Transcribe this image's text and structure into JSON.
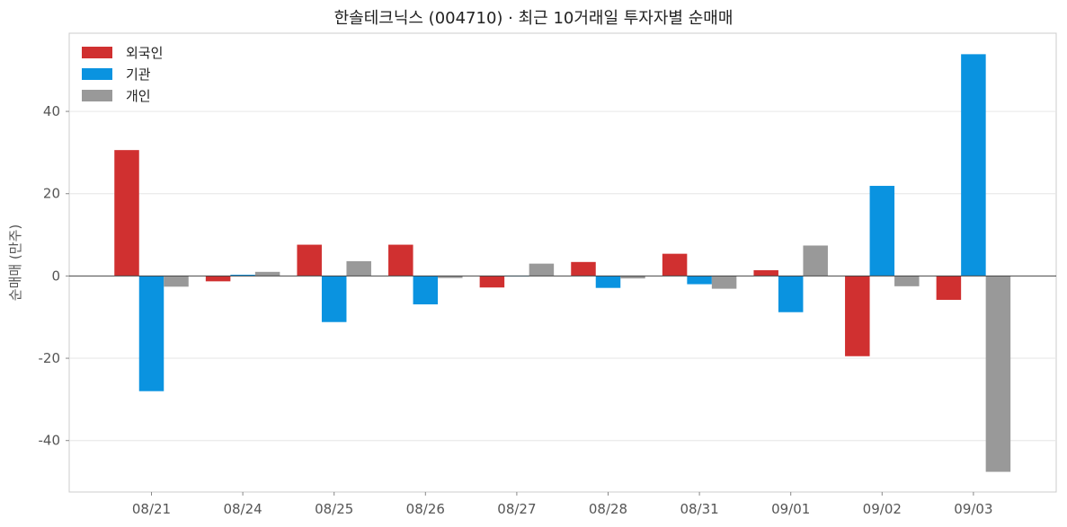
{
  "chart_data": {
    "type": "bar",
    "title": "한솔테크닉스 (004710) · 최근 10거래일 투자자별 순매매",
    "xlabel": "",
    "ylabel": "순매매 (만주)",
    "categories": [
      "08/21",
      "08/24",
      "08/25",
      "08/26",
      "08/27",
      "08/28",
      "08/31",
      "09/01",
      "09/02",
      "09/03"
    ],
    "series": [
      {
        "name": "외국인",
        "color": "#d03030",
        "values": [
          30.6,
          -1.3,
          7.6,
          7.6,
          -2.8,
          3.4,
          5.4,
          1.4,
          -19.5,
          -5.8
        ]
      },
      {
        "name": "기관",
        "color": "#0a93e0",
        "values": [
          -28.0,
          0.3,
          -11.2,
          -6.9,
          0.0,
          -2.9,
          -2.0,
          -8.8,
          21.9,
          53.9
        ]
      },
      {
        "name": "개인",
        "color": "#999999",
        "values": [
          -2.6,
          1.0,
          3.6,
          -0.5,
          3.0,
          -0.6,
          -3.1,
          7.4,
          -2.5,
          -47.6
        ]
      }
    ],
    "yticks": [
      -40,
      -20,
      0,
      20,
      40
    ],
    "ytick_labels": [
      "-40",
      "-20",
      "0",
      "20",
      "40"
    ],
    "ylim": [
      -52.5,
      59.0
    ],
    "grid": true,
    "legend_position": "top-left"
  }
}
